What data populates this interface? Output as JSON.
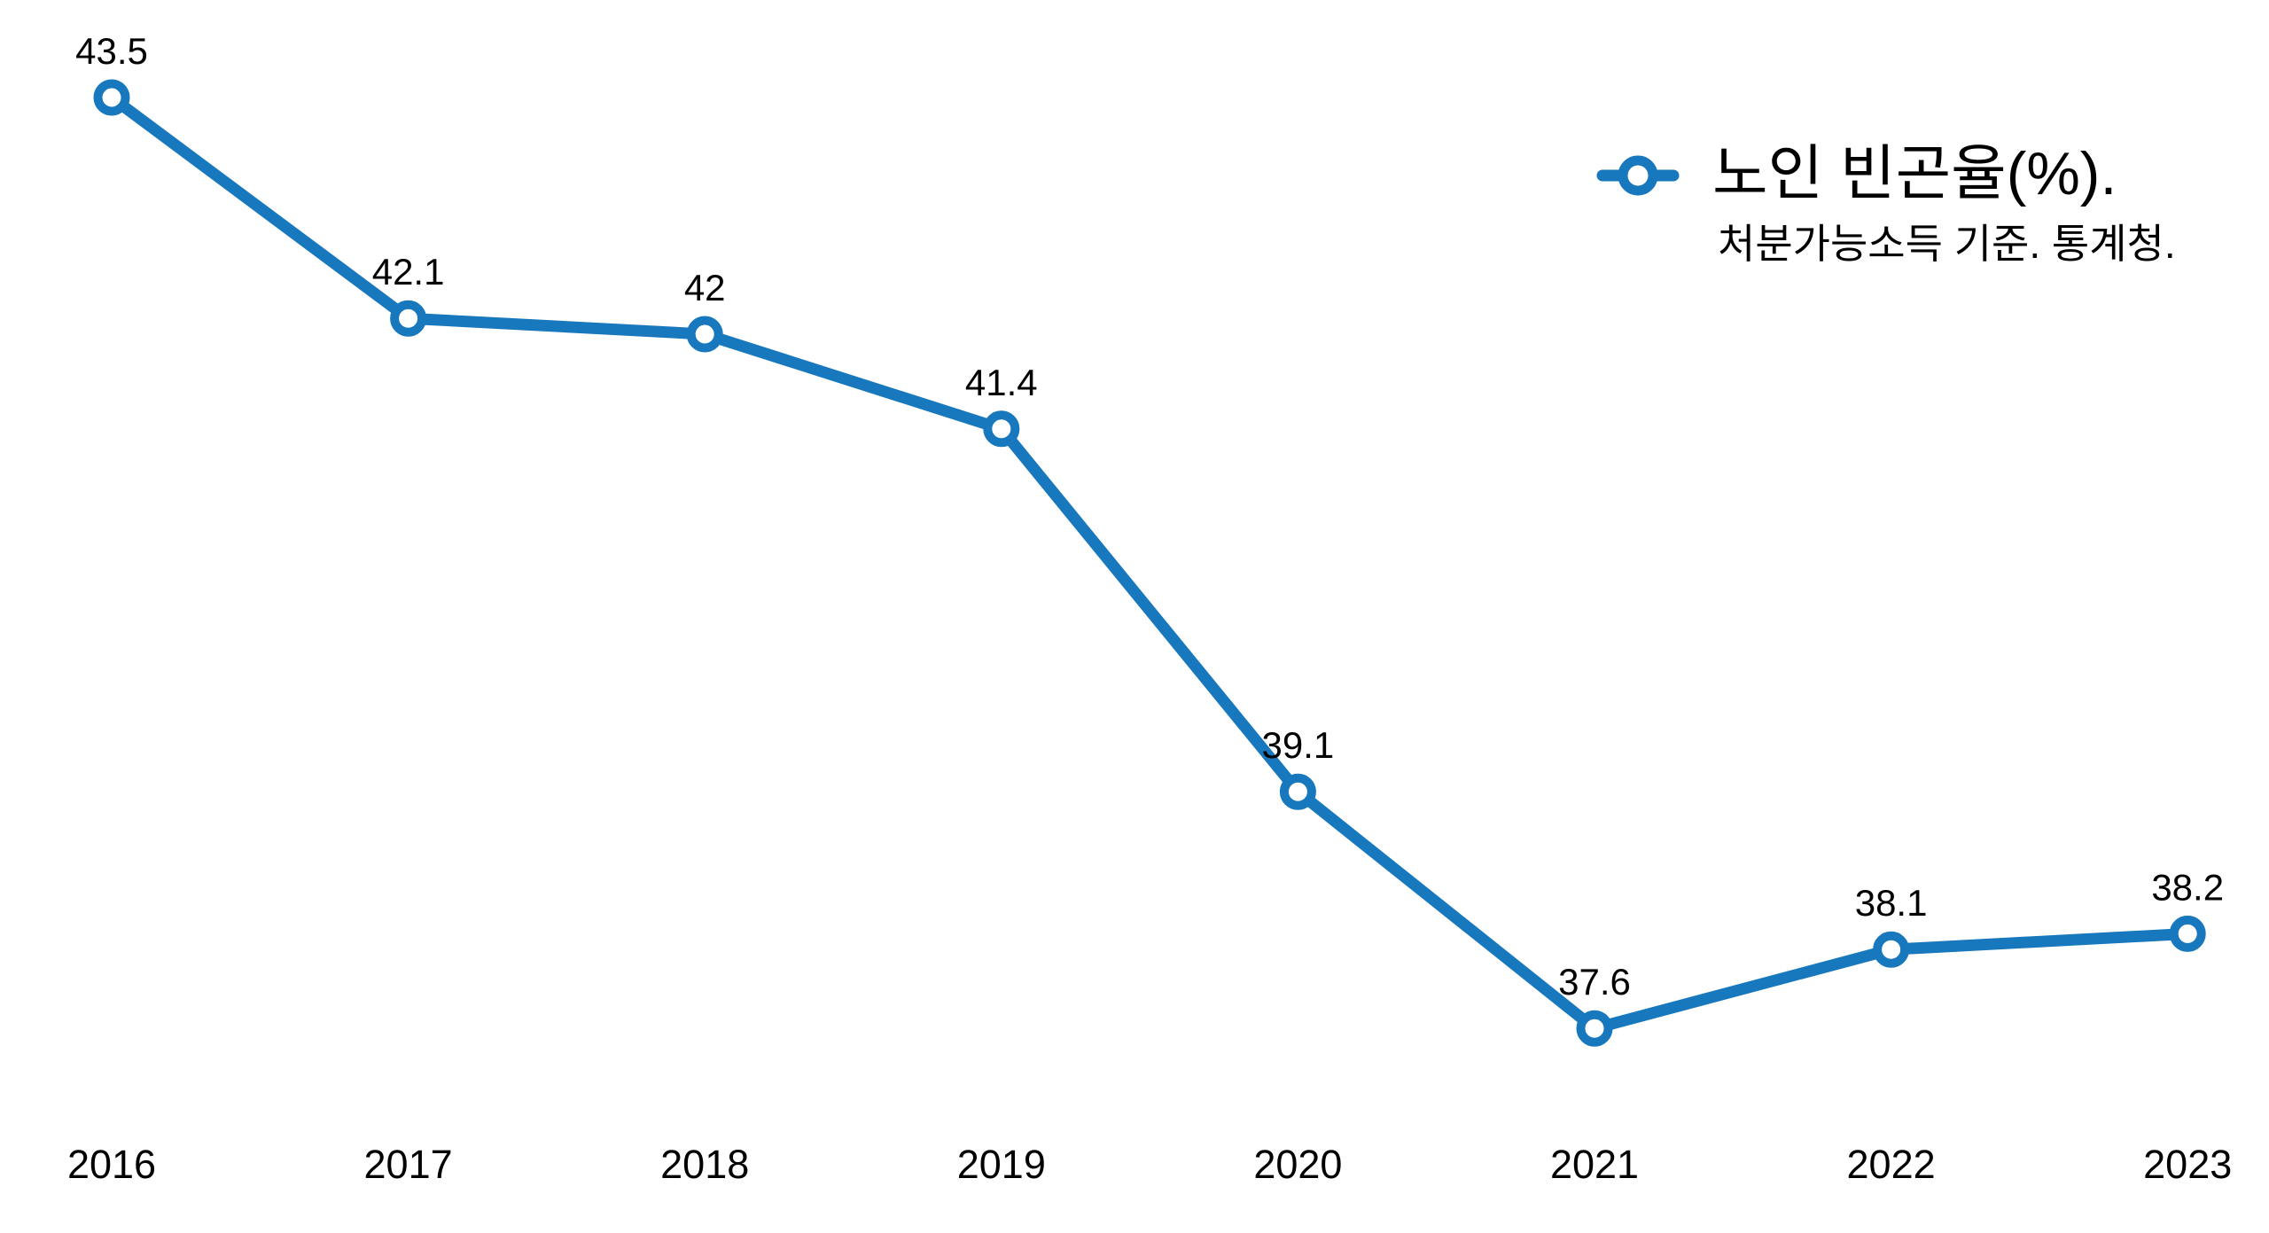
{
  "chart_data": {
    "type": "line",
    "categories": [
      "2016",
      "2017",
      "2018",
      "2019",
      "2020",
      "2021",
      "2022",
      "2023"
    ],
    "series": [
      {
        "name": "노인 빈곤율(%).",
        "values": [
          43.5,
          42.1,
          42,
          41.4,
          39.1,
          37.6,
          38.1,
          38.2
        ],
        "point_labels": [
          "43.5",
          "42.1",
          "42",
          "41.4",
          "39.1",
          "37.6",
          "38.1",
          "38.2"
        ],
        "color": "#1878be",
        "marker": "open-circle",
        "marker_face_color": "#ffffff"
      }
    ],
    "title": "",
    "xlabel": "",
    "ylabel": "",
    "ylim": [
      36.5,
      44.5
    ],
    "grid": false,
    "axes_visible": false,
    "legend": {
      "position": "upper-right",
      "label": "노인 빈곤율(%).",
      "sublabel": "처분가능소득 기준. 통계청."
    },
    "background_color": "#ffffff",
    "text_color": "#000000"
  }
}
